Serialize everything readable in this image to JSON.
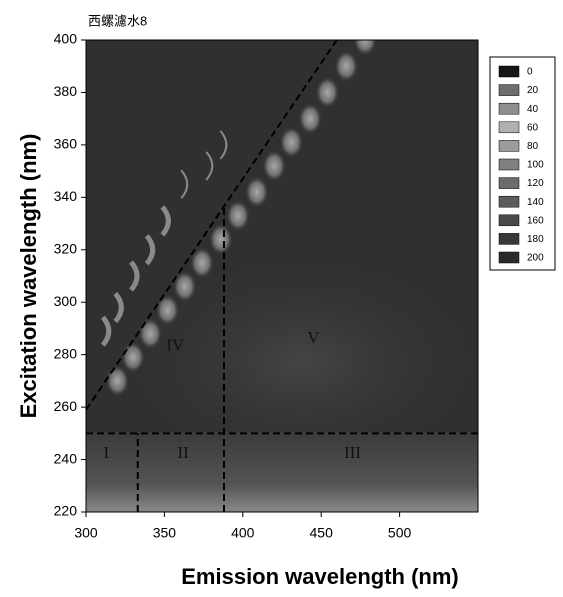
{
  "chart_data": {
    "type": "contour",
    "title": "西螺濾水8",
    "x_label": "Emission wavelength (nm)",
    "y_label": "Excitation wavelength (nm)",
    "xlim": [
      300,
      550
    ],
    "xticks": [
      300,
      350,
      400,
      450,
      500
    ],
    "ylim": [
      220,
      400
    ],
    "yticks": [
      220,
      240,
      260,
      280,
      300,
      320,
      340,
      360,
      380,
      400
    ],
    "background": "#303030",
    "legend": {
      "levels": [
        0,
        20,
        40,
        60,
        80,
        100,
        120,
        140,
        160,
        180,
        200
      ],
      "colors": [
        "#151515",
        "#6e6e6e",
        "#8e8e8e",
        "#b0b0b0",
        "#9c9c9c",
        "#808080",
        "#6c6c6c",
        "#5c5c5c",
        "#4a4a4a",
        "#383838",
        "#2a2a2a"
      ]
    },
    "scatter_peaks": {
      "x": [
        320,
        330,
        341,
        352,
        363,
        374,
        386,
        397,
        409,
        420,
        431,
        443,
        454,
        466,
        478
      ],
      "y": [
        270,
        279,
        288,
        297,
        306,
        315,
        324,
        333,
        342,
        352,
        361,
        370,
        380,
        390,
        400
      ]
    },
    "second_order": {
      "x": [
        312,
        320,
        330,
        340,
        350,
        362,
        378,
        387
      ],
      "y": [
        289,
        298,
        310,
        320,
        331,
        345,
        352,
        360
      ]
    },
    "boundaries": [
      {
        "x": [
          300,
          550
        ],
        "y": [
          250,
          250
        ]
      },
      {
        "x": [
          333,
          333
        ],
        "y": [
          220,
          250
        ]
      },
      {
        "x": [
          388,
          388
        ],
        "y": [
          220,
          336
        ]
      },
      {
        "x": [
          300,
          460
        ],
        "y": [
          259,
          400
        ]
      }
    ],
    "regions": {
      "labels": [
        "I",
        "II",
        "III",
        "IV",
        "V"
      ],
      "x": [
        313,
        362,
        470,
        357,
        445
      ],
      "y": [
        242,
        242,
        242,
        283,
        286
      ]
    }
  }
}
